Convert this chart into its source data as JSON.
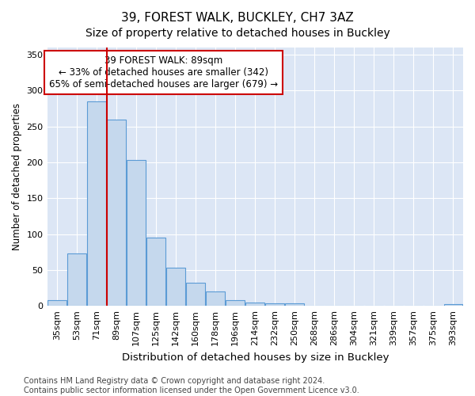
{
  "title": "39, FOREST WALK, BUCKLEY, CH7 3AZ",
  "subtitle": "Size of property relative to detached houses in Buckley",
  "xlabel": "Distribution of detached houses by size in Buckley",
  "ylabel": "Number of detached properties",
  "categories": [
    "35sqm",
    "53sqm",
    "71sqm",
    "89sqm",
    "107sqm",
    "125sqm",
    "142sqm",
    "160sqm",
    "178sqm",
    "196sqm",
    "214sqm",
    "232sqm",
    "250sqm",
    "268sqm",
    "286sqm",
    "304sqm",
    "321sqm",
    "339sqm",
    "357sqm",
    "375sqm",
    "393sqm"
  ],
  "values": [
    8,
    73,
    285,
    260,
    203,
    95,
    53,
    32,
    20,
    8,
    5,
    4,
    4,
    0,
    0,
    0,
    0,
    0,
    0,
    0,
    3
  ],
  "bar_color": "#c5d8ed",
  "bar_edge_color": "#5b9bd5",
  "vline_color": "#cc0000",
  "vline_x": 2.5,
  "annotation_text": "39 FOREST WALK: 89sqm\n← 33% of detached houses are smaller (342)\n65% of semi-detached houses are larger (679) →",
  "annotation_box_color": "#ffffff",
  "annotation_box_edge_color": "#cc0000",
  "ylim": [
    0,
    360
  ],
  "yticks": [
    0,
    50,
    100,
    150,
    200,
    250,
    300,
    350
  ],
  "footer_line1": "Contains HM Land Registry data © Crown copyright and database right 2024.",
  "footer_line2": "Contains public sector information licensed under the Open Government Licence v3.0.",
  "background_color": "#ffffff",
  "plot_background_color": "#dce6f5",
  "title_fontsize": 11,
  "subtitle_fontsize": 10,
  "xlabel_fontsize": 9.5,
  "ylabel_fontsize": 8.5,
  "tick_fontsize": 8,
  "annotation_fontsize": 8.5,
  "footer_fontsize": 7
}
